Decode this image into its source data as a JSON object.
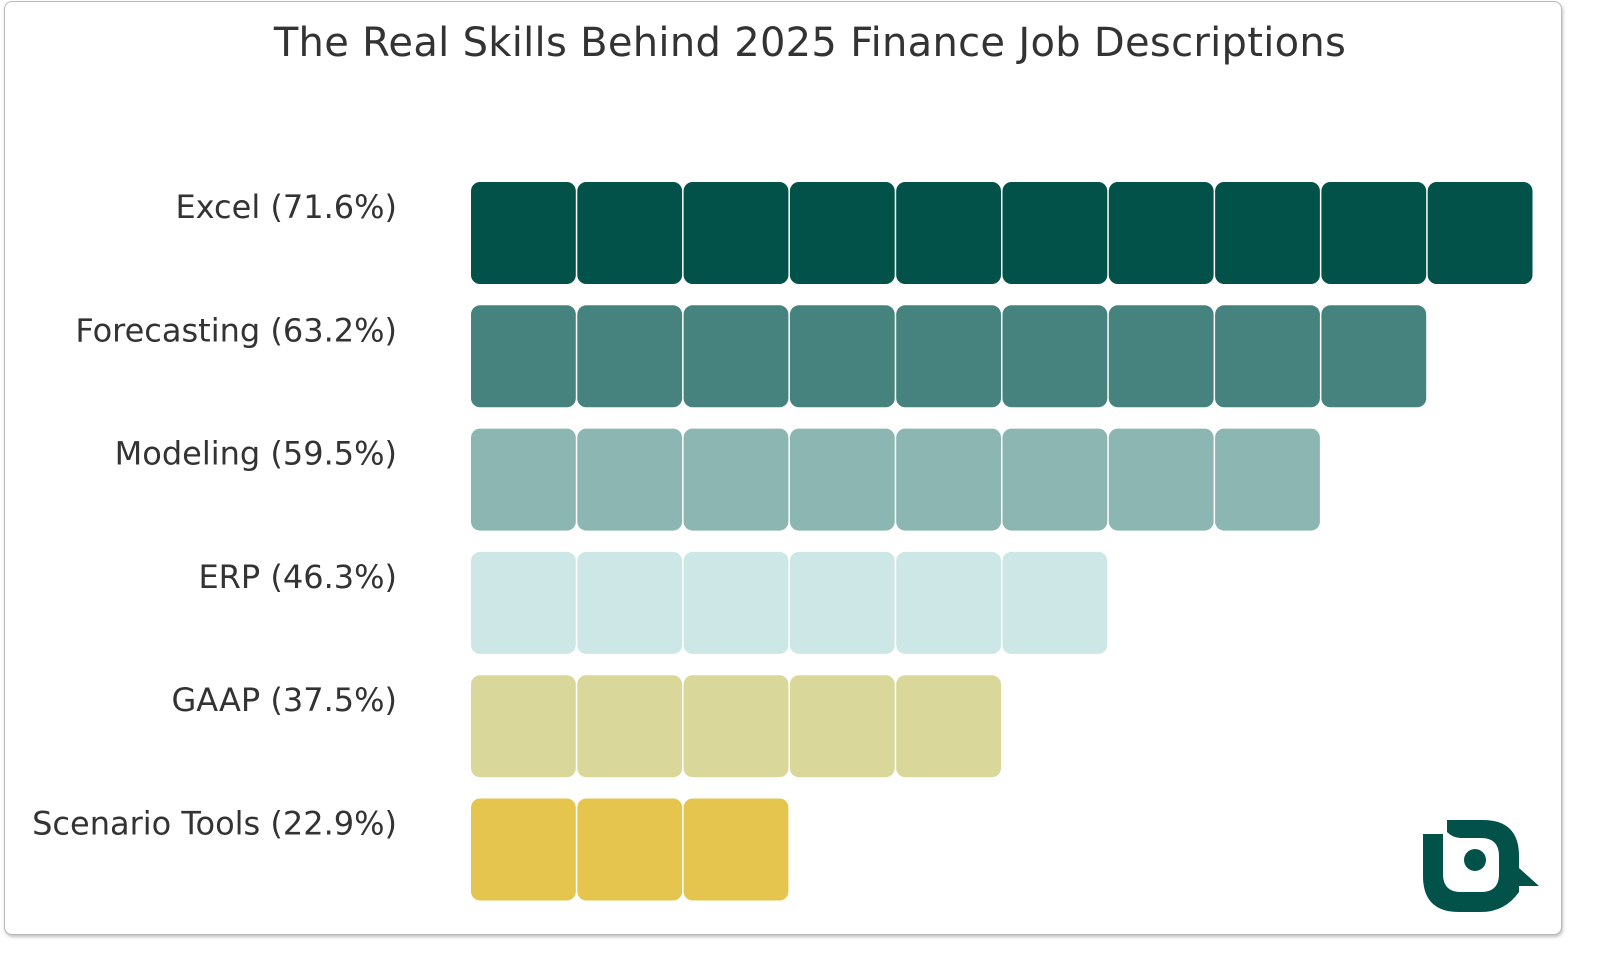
{
  "chart_data": {
    "type": "bar",
    "orientation": "horizontal",
    "style": "unit-blocks",
    "title": "The Real Skills Behind 2025 Finance Job Descriptions",
    "xlabel": "",
    "ylabel": "",
    "grid": false,
    "categories": [
      "Excel (71.6%)",
      "Forecasting (63.2%)",
      "Modeling (59.5%)",
      "ERP (46.3%)",
      "GAAP (37.5%)",
      "Scenario Tools (22.9%)"
    ],
    "values": [
      71.6,
      63.2,
      59.5,
      46.3,
      37.5,
      22.9
    ],
    "blocks": [
      10,
      9,
      8,
      6,
      5,
      3
    ],
    "colors": [
      "#02524a",
      "#46837e",
      "#8bb6b2",
      "#cde6e6",
      "#d9d79a",
      "#e5c54d"
    ]
  },
  "logo": {
    "icon": "brand-logo-icon",
    "color": "#02524a"
  }
}
